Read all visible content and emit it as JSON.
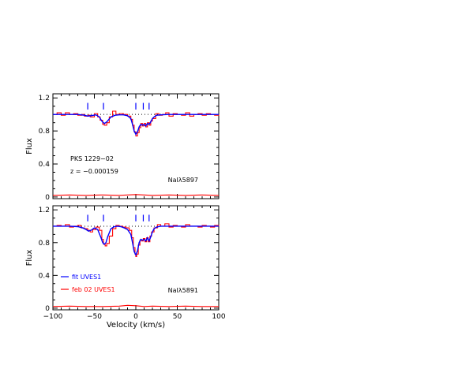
{
  "chart_data": [
    {
      "type": "line",
      "panel": "top",
      "xlim": [
        -100,
        100
      ],
      "ylim": [
        -0.02,
        1.25
      ],
      "xticks": [
        -100,
        -50,
        0,
        50,
        100
      ],
      "yticks": [
        0,
        0.4,
        0.8,
        1.2
      ],
      "ytick_labels": [
        "0",
        "0.4",
        "0.8",
        "1.2"
      ],
      "ylabel": "Flux",
      "annotations": [
        "PKS 1229−02",
        "z = −0.000159"
      ],
      "line_label": "NaIλ5897",
      "component_markers_x": [
        -58,
        -39,
        0,
        9,
        16
      ],
      "continuum_level": 1.0,
      "series": [
        {
          "color": "#0000ff",
          "x": [
            -100,
            -90,
            -80,
            -70,
            -62,
            -58,
            -54,
            -48,
            -44,
            -41,
            -38,
            -35,
            -30,
            -25,
            -20,
            -15,
            -10,
            -6,
            -4,
            -2,
            0,
            2,
            4,
            6,
            8,
            10,
            12,
            14,
            16,
            18,
            20,
            22,
            25,
            30,
            40,
            50,
            60,
            70,
            80,
            90,
            100
          ],
          "y": [
            1.0,
            1.0,
            1.0,
            1.0,
            0.99,
            0.98,
            0.985,
            0.995,
            0.97,
            0.92,
            0.89,
            0.91,
            0.97,
            0.99,
            0.995,
            0.995,
            0.985,
            0.95,
            0.88,
            0.8,
            0.76,
            0.79,
            0.85,
            0.88,
            0.87,
            0.88,
            0.86,
            0.89,
            0.88,
            0.91,
            0.95,
            0.97,
            0.99,
            0.995,
            1.0,
            1.0,
            1.0,
            1.0,
            1.0,
            1.0,
            1.0
          ]
        },
        {
          "color": "#ff0000",
          "x": [
            -100,
            -95,
            -90,
            -85,
            -80,
            -75,
            -70,
            -65,
            -62,
            -58,
            -55,
            -50,
            -46,
            -43,
            -40,
            -38,
            -35,
            -32,
            -28,
            -24,
            -20,
            -15,
            -10,
            -6,
            -4,
            -2,
            0,
            2,
            4,
            6,
            8,
            10,
            12,
            14,
            16,
            18,
            20,
            24,
            28,
            32,
            36,
            40,
            45,
            50,
            55,
            60,
            65,
            70,
            75,
            80,
            85,
            90,
            95,
            100
          ],
          "y": [
            1.0,
            1.02,
            0.99,
            1.02,
            1.0,
            1.01,
            0.99,
            1.0,
            0.98,
            0.99,
            0.97,
            1.01,
            0.97,
            0.93,
            0.88,
            0.87,
            0.9,
            0.97,
            1.04,
            1.0,
            1.01,
            1.0,
            0.98,
            0.94,
            0.87,
            0.79,
            0.74,
            0.78,
            0.84,
            0.89,
            0.86,
            0.89,
            0.85,
            0.9,
            0.87,
            0.92,
            0.95,
            1.01,
            0.99,
            1.0,
            1.02,
            0.98,
            1.01,
            1.0,
            0.99,
            1.02,
            0.98,
            1.0,
            1.01,
            0.99,
            1.01,
            1.0,
            0.99,
            1.0
          ]
        },
        {
          "color": "#ff0000",
          "role": "residual",
          "x": [
            -100,
            -80,
            -60,
            -40,
            -20,
            0,
            20,
            40,
            60,
            80,
            100
          ],
          "y": [
            0.02,
            0.025,
            0.02,
            0.025,
            0.02,
            0.03,
            0.02,
            0.025,
            0.02,
            0.025,
            0.02
          ]
        }
      ]
    },
    {
      "type": "line",
      "panel": "bottom",
      "xlim": [
        -100,
        100
      ],
      "ylim": [
        -0.02,
        1.25
      ],
      "xticks": [
        -100,
        -50,
        0,
        50,
        100
      ],
      "xtick_labels": [
        "−100",
        "−50",
        "0",
        "50",
        "100"
      ],
      "yticks": [
        0,
        0.4,
        0.8,
        1.2
      ],
      "ytick_labels": [
        "0",
        "0.4",
        "0.8",
        "1.2"
      ],
      "xlabel": "Velocity (km/s)",
      "ylabel": "Flux",
      "line_label": "NaIλ5891",
      "component_markers_x": [
        -58,
        -39,
        0,
        9,
        16
      ],
      "continuum_level": 1.0,
      "legend": [
        {
          "label": "fit  UVES1",
          "color": "#0000ff"
        },
        {
          "label": "feb  02  UVES1",
          "color": "#ff0000"
        }
      ],
      "series": [
        {
          "color": "#0000ff",
          "x": [
            -100,
            -90,
            -80,
            -70,
            -64,
            -60,
            -57,
            -54,
            -50,
            -46,
            -42,
            -40,
            -38,
            -36,
            -34,
            -30,
            -26,
            -22,
            -18,
            -14,
            -10,
            -6,
            -4,
            -2,
            0,
            2,
            4,
            6,
            8,
            10,
            12,
            14,
            16,
            18,
            20,
            22,
            25,
            30,
            40,
            50,
            60,
            70,
            80,
            90,
            100
          ],
          "y": [
            1.0,
            1.0,
            1.0,
            0.995,
            0.98,
            0.96,
            0.94,
            0.95,
            0.98,
            0.96,
            0.86,
            0.8,
            0.78,
            0.8,
            0.87,
            0.97,
            0.995,
            1.0,
            0.995,
            0.98,
            0.96,
            0.9,
            0.8,
            0.69,
            0.65,
            0.7,
            0.8,
            0.84,
            0.83,
            0.84,
            0.82,
            0.86,
            0.82,
            0.87,
            0.93,
            0.97,
            0.99,
            1.0,
            1.0,
            1.0,
            1.0,
            1.0,
            1.0,
            1.0,
            1.0
          ]
        },
        {
          "color": "#ff0000",
          "x": [
            -100,
            -95,
            -90,
            -85,
            -80,
            -75,
            -70,
            -66,
            -62,
            -58,
            -55,
            -52,
            -48,
            -44,
            -41,
            -39,
            -37,
            -35,
            -32,
            -28,
            -24,
            -20,
            -16,
            -12,
            -8,
            -5,
            -3,
            -1,
            0,
            1,
            3,
            5,
            7,
            9,
            11,
            13,
            15,
            17,
            19,
            22,
            26,
            30,
            35,
            40,
            45,
            50,
            55,
            60,
            65,
            70,
            75,
            80,
            85,
            90,
            95,
            100
          ],
          "y": [
            1.0,
            1.01,
            1.0,
            1.02,
            0.99,
            1.0,
            1.01,
            0.98,
            0.97,
            0.95,
            0.93,
            0.96,
            0.99,
            0.95,
            0.84,
            0.78,
            0.76,
            0.79,
            0.88,
            0.97,
            1.01,
            1.0,
            0.99,
            0.98,
            0.95,
            0.86,
            0.74,
            0.66,
            0.63,
            0.66,
            0.77,
            0.83,
            0.82,
            0.85,
            0.81,
            0.86,
            0.81,
            0.88,
            0.93,
            0.98,
            1.02,
            1.0,
            1.03,
            0.99,
            1.01,
            1.0,
            0.99,
            1.02,
            1.0,
            1.0,
            0.99,
            1.01,
            1.0,
            0.99,
            1.01,
            1.0
          ]
        },
        {
          "color": "#ff0000",
          "role": "residual",
          "x": [
            -100,
            -80,
            -60,
            -40,
            -20,
            -10,
            0,
            10,
            20,
            40,
            60,
            80,
            100
          ],
          "y": [
            0.02,
            0.025,
            0.02,
            0.02,
            0.025,
            0.035,
            0.03,
            0.02,
            0.025,
            0.02,
            0.025,
            0.02,
            0.02
          ]
        }
      ]
    }
  ]
}
